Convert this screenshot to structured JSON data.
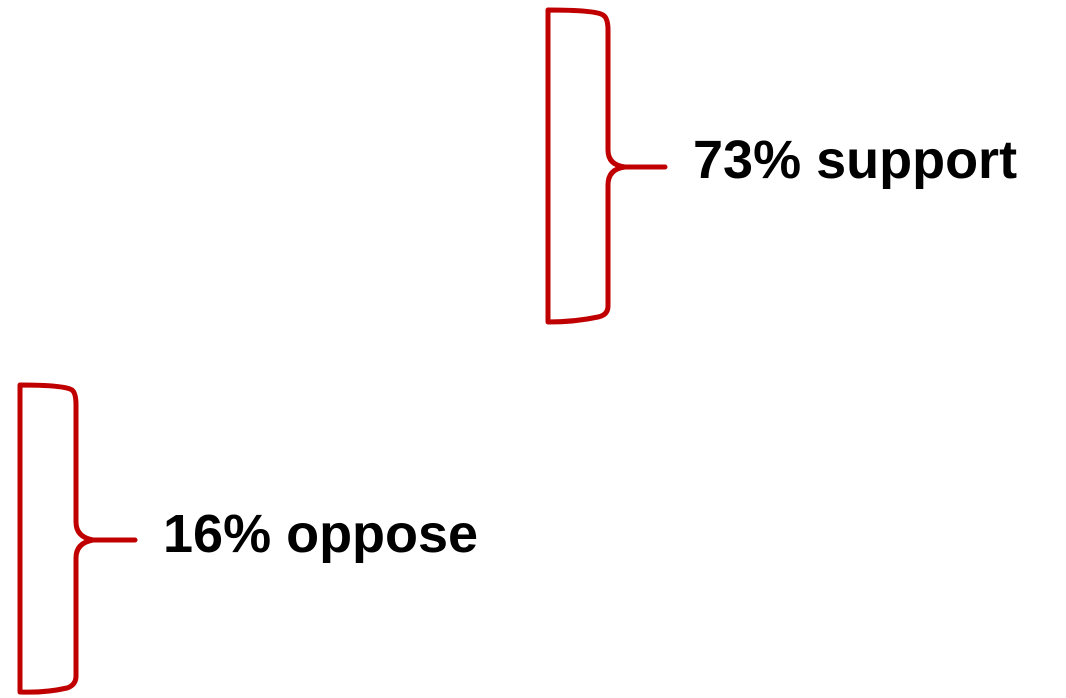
{
  "annotations": [
    {
      "label": "73% support"
    },
    {
      "label": "16% oppose"
    }
  ]
}
